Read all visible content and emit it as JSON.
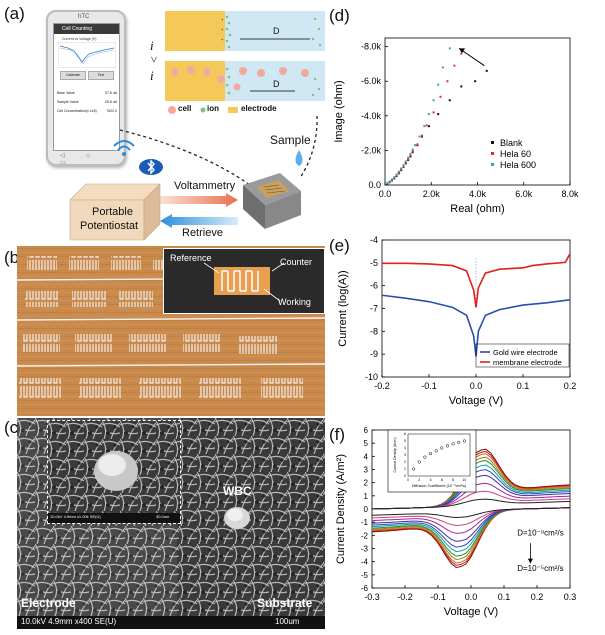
{
  "panels": {
    "a": "(a)",
    "b": "(b)",
    "c": "(c)",
    "d": "(d)",
    "e": "(e)",
    "f": "(f)"
  },
  "panel_a": {
    "phone_brand": "hTC",
    "app_title": "Cell Counting",
    "graph_title": "Current vs Voltage (V)",
    "btn_calibrate": "Calibrate",
    "btn_test": "Test",
    "rows": [
      {
        "label": "Base Value",
        "value": "37.8 uA"
      },
      {
        "label": "Sample Value",
        "value": "25.8 uA"
      },
      {
        "label": "Cell Concentration(x 1e5)",
        "value": "7622.0"
      }
    ],
    "i_top": "i",
    "gt": ">",
    "i_bottom": "i",
    "d_label_top": "D",
    "d_label_bottom": "D",
    "legend": [
      {
        "label": "cell",
        "color": "#f4a9a0"
      },
      {
        "label": "ion",
        "color": "#7dc27d"
      },
      {
        "label": "electrode",
        "color": "#f5c85a"
      }
    ],
    "sample": "Sample",
    "voltammetry": "Voltammetry",
    "retrieve": "Retrieve",
    "potentiostat": [
      "Portable",
      "Potentiostat"
    ]
  },
  "panel_b": {
    "reference": "Reference",
    "counter": "Counter",
    "working": "Working"
  },
  "panel_c": {
    "wbc": "WBC",
    "electrode": "Electrode",
    "substrate": "Substrate",
    "footer": "10.0kV 4.9mm x400 SE(U)",
    "scale": "100um",
    "inset_footer": "10.0kV 4.9mm x1.00k SE(U)",
    "inset_scale": "30.0um"
  },
  "chart_d": {
    "type": "scatter",
    "xlabel": "Real (ohm)",
    "ylabel": "Image (ohm)",
    "xticks": [
      "0.0",
      "2.0k",
      "4.0k",
      "6.0k",
      "8.0k"
    ],
    "yticks": [
      "0.0",
      "-2.0k",
      "-4.0k",
      "-6.0k",
      "-8.0k"
    ],
    "xlim": [
      0,
      8000
    ],
    "ylim": [
      0,
      -8500
    ],
    "series": [
      {
        "name": "Blank",
        "color": "#111111",
        "x": [
          100,
          200,
          300,
          400,
          500,
          600,
          700,
          800,
          900,
          1000,
          1100,
          1200,
          1400,
          1600,
          1900,
          2300,
          2800,
          3300,
          3900,
          4400
        ],
        "y": [
          -80,
          -160,
          -260,
          -380,
          -520,
          -680,
          -860,
          -1050,
          -1250,
          -1450,
          -1650,
          -1900,
          -2300,
          -2800,
          -3400,
          -4100,
          -4900,
          -5700,
          -6000,
          -6600
        ]
      },
      {
        "name": "Hela 60",
        "color": "#e03030",
        "x": [
          100,
          200,
          300,
          400,
          500,
          600,
          700,
          800,
          900,
          1000,
          1100,
          1200,
          1400,
          1600,
          1800,
          2100,
          2400,
          2700,
          3000,
          3300
        ],
        "y": [
          -90,
          -180,
          -290,
          -410,
          -560,
          -720,
          -900,
          -1090,
          -1290,
          -1500,
          -1720,
          -1950,
          -2350,
          -2850,
          -3450,
          -4200,
          -5100,
          -6000,
          -6900,
          -7600
        ]
      },
      {
        "name": "Hela 600",
        "color": "#3aa0b5",
        "x": [
          100,
          200,
          300,
          400,
          500,
          600,
          700,
          800,
          900,
          1000,
          1100,
          1200,
          1300,
          1500,
          1700,
          1900,
          2100,
          2300,
          2500,
          2800
        ],
        "y": [
          -100,
          -200,
          -320,
          -450,
          -600,
          -770,
          -950,
          -1150,
          -1360,
          -1580,
          -1800,
          -2050,
          -2300,
          -2800,
          -3400,
          -4100,
          -4900,
          -5800,
          -6800,
          -7900
        ]
      }
    ]
  },
  "chart_e": {
    "type": "line",
    "xlabel": "Voltage (V)",
    "ylabel": "Current (log(A))",
    "xticks": [
      "-0.2",
      "-0.1",
      "0.0",
      "0.1",
      "0.2"
    ],
    "yticks": [
      "-4",
      "-5",
      "-6",
      "-7",
      "-8",
      "-9",
      "-10"
    ],
    "xlim": [
      -0.2,
      0.2
    ],
    "ylim": [
      -10,
      -4
    ],
    "series": [
      {
        "name": "Gold wire electrode",
        "color": "#2a4fb0",
        "x": [
          -0.2,
          -0.15,
          -0.1,
          -0.05,
          -0.02,
          -0.005,
          0.0,
          0.005,
          0.02,
          0.05,
          0.1,
          0.15,
          0.2
        ],
        "y": [
          -6.42,
          -6.55,
          -6.7,
          -6.95,
          -7.3,
          -8.2,
          -9.1,
          -8.0,
          -7.3,
          -7.05,
          -6.85,
          -6.75,
          -6.62
        ]
      },
      {
        "name": "membrane electrode",
        "color": "#e02020",
        "x": [
          -0.2,
          -0.15,
          -0.1,
          -0.05,
          -0.02,
          -0.005,
          0.0,
          0.005,
          0.02,
          0.05,
          0.1,
          0.12,
          0.15,
          0.19,
          0.2
        ],
        "y": [
          -5.02,
          -5.02,
          -5.05,
          -5.12,
          -5.35,
          -6.2,
          -6.95,
          -6.1,
          -5.45,
          -5.28,
          -5.22,
          -5.12,
          -5.05,
          -4.98,
          -4.6
        ]
      }
    ]
  },
  "chart_f": {
    "type": "line",
    "xlabel": "Voltage (V)",
    "ylabel": "Current Density (A/m²)",
    "xticks": [
      "-0.3",
      "-0.2",
      "-0.1",
      "0.0",
      "0.1",
      "0.2",
      "0.3"
    ],
    "yticks": [
      "6",
      "5",
      "4",
      "3",
      "2",
      "1",
      "0",
      "-1",
      "-2",
      "-3",
      "-4",
      "-5",
      "-6"
    ],
    "xlim": [
      -0.3,
      0.3
    ],
    "ylim": [
      -6,
      6
    ],
    "annotations": {
      "top": "D=10⁻⁹cm²/s",
      "bottom": "D=10⁻⁵cm²/s"
    },
    "inset": {
      "xlabel": "Diffusion Coefficient (10⁻⁹cm²/s)",
      "ylabel": "Current Density (A/m²)",
      "x": [
        1,
        2,
        3,
        4,
        5,
        6,
        7,
        8,
        9,
        10
      ],
      "y": [
        1.0,
        2.0,
        2.7,
        3.2,
        3.6,
        4.0,
        4.3,
        4.6,
        4.8,
        5.0
      ],
      "xlim": [
        0,
        11
      ],
      "ylim": [
        0,
        6
      ],
      "xticks": [
        "0",
        "2",
        "4",
        "6",
        "8",
        "10"
      ],
      "yticks": [
        "0",
        "1",
        "2",
        "3",
        "4",
        "5",
        "6"
      ]
    },
    "curve_colors": [
      "#7a1010",
      "#c02020",
      "#e06020",
      "#8a8a20",
      "#2a8a2a",
      "#1aa0a0",
      "#2050c0",
      "#4a2aa0",
      "#9a2a9a",
      "#d04080",
      "#202020"
    ],
    "peaks": [
      5.0,
      4.8,
      4.6,
      4.3,
      4.0,
      3.6,
      3.2,
      2.7,
      2.0,
      1.3,
      0.6
    ]
  }
}
